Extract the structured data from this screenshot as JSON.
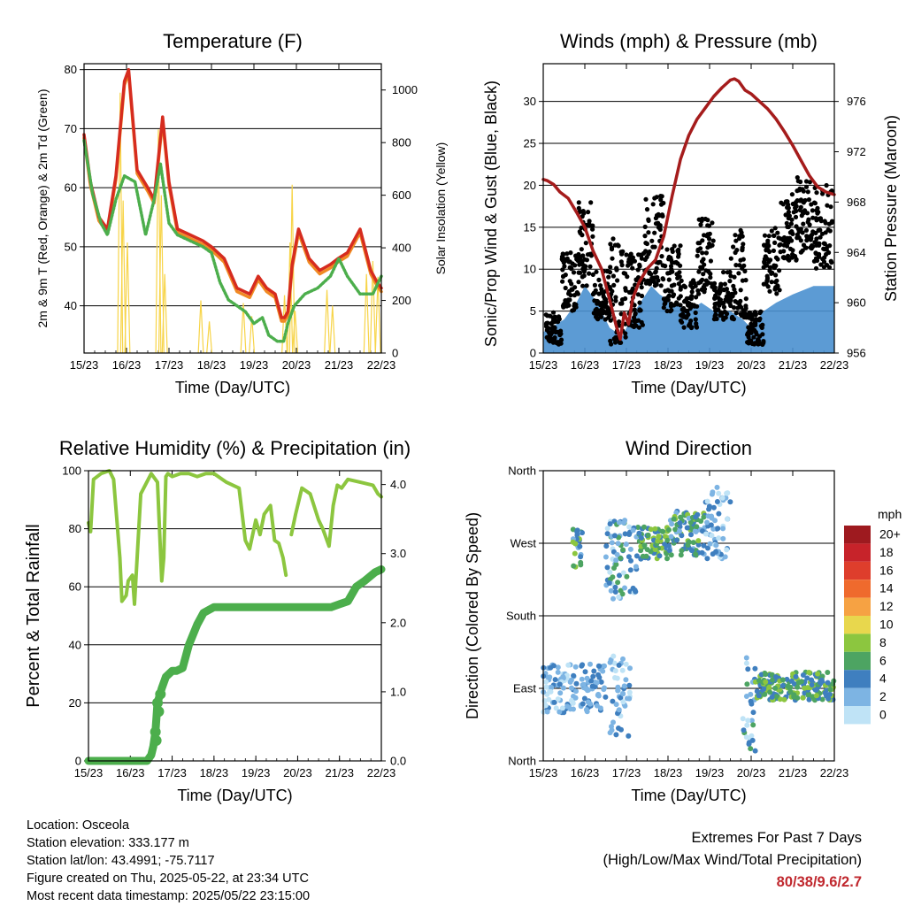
{
  "footer": {
    "location": "Location: Osceola",
    "elevation": "Station elevation: 333.177 m",
    "latlon": "Station lat/lon: 43.4991; -75.7117",
    "created": "Figure created on Thu, 2025-05-22, at 23:34 UTC",
    "latest": "Most recent data timestamp: 2025/05/22 23:15:00",
    "extremes_title": "Extremes For Past 7 Days",
    "extremes_sub": "(High/Low/Max Wind/Total Precipitation)",
    "extremes_value": "80/38/9.6/2.7"
  },
  "colors": {
    "temp_2m": "#d62c1f",
    "temp_9m": "#f08a24",
    "dewpoint": "#4cae4c",
    "solar": "#f7d448",
    "wind_speed": "#4a90cf",
    "wind_gust": "#000000",
    "pressure": "#a51c1c",
    "humidity": "#8cc63f",
    "precip": "#4cae4c"
  },
  "chart_data": [
    {
      "id": "temperature",
      "type": "line",
      "title": "Temperature (F)",
      "xlabel": "Time (Day/UTC)",
      "ylabel": "2m & 9m T (Red, Orange) & 2m Td (Green)",
      "ylabel_right": "Solar Insolation (Yellow)",
      "x_ticks": [
        "15/23",
        "16/23",
        "17/23",
        "18/23",
        "19/23",
        "20/23",
        "21/23",
        "22/23"
      ],
      "xlim": [
        0,
        7
      ],
      "ylim": [
        32,
        81
      ],
      "y_ticks": [
        40,
        50,
        60,
        70,
        80
      ],
      "ylim_right": [
        0,
        1100
      ],
      "y_ticks_right": [
        0,
        200,
        400,
        600,
        800,
        1000
      ],
      "grid": "horizontal",
      "series": [
        {
          "key": "temp",
          "x": [
            0,
            0.15,
            0.35,
            0.55,
            0.75,
            0.95,
            1.05,
            1.25,
            1.5,
            1.65,
            1.85,
            2.0,
            2.2,
            2.5,
            2.8,
            3.0,
            3.3,
            3.6,
            3.9,
            4.1,
            4.3,
            4.5,
            4.65,
            4.72,
            4.8,
            4.9,
            5.05,
            5.3,
            5.55,
            5.8,
            5.98,
            6.2,
            6.5,
            6.75,
            6.9,
            7.0
          ],
          "y": [
            69,
            61,
            55,
            53,
            62,
            78,
            80,
            63,
            60,
            58,
            72,
            61,
            53,
            52,
            51,
            50,
            48,
            43,
            42,
            45,
            43,
            42,
            38,
            38,
            39,
            47,
            53,
            48,
            46,
            47,
            48,
            49,
            53,
            46,
            44,
            43
          ]
        },
        {
          "key": "dew",
          "x": [
            0,
            0.2,
            0.4,
            0.55,
            0.75,
            0.95,
            1.2,
            1.45,
            1.65,
            1.8,
            2.0,
            2.2,
            2.5,
            2.8,
            3.0,
            3.2,
            3.4,
            3.6,
            3.8,
            4.0,
            4.2,
            4.35,
            4.55,
            4.7,
            4.8,
            4.95,
            5.2,
            5.5,
            5.8,
            6.0,
            6.2,
            6.5,
            6.8,
            7.0
          ],
          "y": [
            68,
            59,
            54,
            52,
            58,
            62,
            61,
            52,
            58,
            64,
            54,
            52,
            51,
            50,
            49,
            44,
            41,
            40,
            39,
            37,
            38,
            35,
            34,
            34,
            37,
            40,
            42,
            43,
            45,
            48,
            45,
            42,
            42,
            45
          ]
        }
      ],
      "solar_peaks": [
        {
          "x": 0.85,
          "v": 990
        },
        {
          "x": 0.92,
          "v": 580
        },
        {
          "x": 1.02,
          "v": 420
        },
        {
          "x": 1.75,
          "v": 850
        },
        {
          "x": 1.82,
          "v": 600
        },
        {
          "x": 1.9,
          "v": 300
        },
        {
          "x": 2.75,
          "v": 200
        },
        {
          "x": 2.95,
          "v": 120
        },
        {
          "x": 3.75,
          "v": 190
        },
        {
          "x": 3.95,
          "v": 140
        },
        {
          "x": 4.72,
          "v": 220
        },
        {
          "x": 4.85,
          "v": 420
        },
        {
          "x": 4.9,
          "v": 640
        },
        {
          "x": 4.97,
          "v": 160
        },
        {
          "x": 5.72,
          "v": 240
        },
        {
          "x": 5.85,
          "v": 180
        },
        {
          "x": 6.65,
          "v": 300
        },
        {
          "x": 6.8,
          "v": 350
        },
        {
          "x": 6.92,
          "v": 290
        }
      ]
    },
    {
      "id": "winds",
      "type": "scatter",
      "title": "Winds (mph) & Pressure (mb)",
      "xlabel": "Time (Day/UTC)",
      "ylabel": "Sonic/Prop Wind & Gust (Blue, Black)",
      "ylabel_right": "Station Pressure (Maroon)",
      "x_ticks": [
        "15/23",
        "16/23",
        "17/23",
        "18/23",
        "19/23",
        "20/23",
        "21/23",
        "22/23"
      ],
      "xlim": [
        0,
        7
      ],
      "ylim": [
        0,
        34.5
      ],
      "y_ticks": [
        0,
        5,
        10,
        15,
        20,
        25,
        30
      ],
      "ylim_right": [
        956,
        979
      ],
      "y_ticks_right": [
        956,
        960,
        964,
        968,
        972,
        976
      ],
      "grid": "horizontal",
      "pressure": {
        "x": [
          0,
          0.1,
          0.25,
          0.4,
          0.6,
          0.8,
          1.0,
          1.2,
          1.4,
          1.6,
          1.75,
          1.85,
          1.95,
          2.05,
          2.15,
          2.3,
          2.5,
          2.7,
          2.9,
          3.1,
          3.3,
          3.5,
          3.7,
          3.9,
          4.1,
          4.3,
          4.5,
          4.6,
          4.7,
          4.85,
          5.0,
          5.2,
          5.4,
          5.6,
          5.8,
          6.0,
          6.2,
          6.4,
          6.6,
          6.8,
          7.0
        ],
        "y": [
          969.8,
          969.7,
          969.4,
          968.8,
          968.3,
          967.2,
          966.0,
          964.1,
          962.7,
          960.2,
          958.2,
          957.1,
          959.2,
          958.3,
          960.3,
          961.6,
          962.7,
          963.4,
          965.3,
          968.5,
          971.4,
          973.3,
          974.6,
          975.5,
          976.4,
          977.1,
          977.7,
          977.8,
          977.6,
          976.9,
          976.6,
          976.0,
          975.4,
          974.6,
          973.6,
          972.5,
          971.3,
          970.1,
          969.2,
          968.8,
          968.6
        ]
      },
      "speed_envelope": [
        {
          "x": 0,
          "y": 2.5
        },
        {
          "x": 0.5,
          "y": 4
        },
        {
          "x": 0.8,
          "y": 6
        },
        {
          "x": 1.0,
          "y": 8
        },
        {
          "x": 1.3,
          "y": 6
        },
        {
          "x": 1.6,
          "y": 3
        },
        {
          "x": 1.9,
          "y": 2
        },
        {
          "x": 2.2,
          "y": 5
        },
        {
          "x": 2.6,
          "y": 8
        },
        {
          "x": 2.8,
          "y": 7
        },
        {
          "x": 3.1,
          "y": 6
        },
        {
          "x": 3.5,
          "y": 5
        },
        {
          "x": 3.8,
          "y": 6
        },
        {
          "x": 4.1,
          "y": 5
        },
        {
          "x": 4.5,
          "y": 5
        },
        {
          "x": 4.8,
          "y": 4
        },
        {
          "x": 5.0,
          "y": 3
        },
        {
          "x": 5.3,
          "y": 5
        },
        {
          "x": 5.6,
          "y": 6
        },
        {
          "x": 6.0,
          "y": 7
        },
        {
          "x": 6.5,
          "y": 8
        },
        {
          "x": 7.0,
          "y": 8
        }
      ],
      "gust_clusters": [
        {
          "x0": 0.05,
          "x1": 0.45,
          "lo": 1,
          "hi": 5
        },
        {
          "x0": 0.45,
          "x1": 0.85,
          "lo": 5,
          "hi": 12
        },
        {
          "x0": 0.85,
          "x1": 1.2,
          "lo": 8,
          "hi": 18
        },
        {
          "x0": 1.2,
          "x1": 1.6,
          "lo": 4,
          "hi": 10
        },
        {
          "x0": 1.6,
          "x1": 2.0,
          "lo": 1,
          "hi": 14
        },
        {
          "x0": 2.0,
          "x1": 2.4,
          "lo": 3,
          "hi": 12
        },
        {
          "x0": 2.4,
          "x1": 2.9,
          "lo": 8,
          "hi": 19
        },
        {
          "x0": 2.9,
          "x1": 3.3,
          "lo": 5,
          "hi": 13
        },
        {
          "x0": 3.3,
          "x1": 3.7,
          "lo": 3,
          "hi": 9
        },
        {
          "x0": 3.7,
          "x1": 4.1,
          "lo": 7,
          "hi": 16
        },
        {
          "x0": 4.1,
          "x1": 4.5,
          "lo": 4,
          "hi": 10
        },
        {
          "x0": 4.5,
          "x1": 4.9,
          "lo": 4,
          "hi": 15
        },
        {
          "x0": 4.9,
          "x1": 5.3,
          "lo": 1,
          "hi": 5
        },
        {
          "x0": 5.3,
          "x1": 5.7,
          "lo": 7,
          "hi": 15
        },
        {
          "x0": 5.7,
          "x1": 6.1,
          "lo": 11,
          "hi": 19
        },
        {
          "x0": 6.1,
          "x1": 6.5,
          "lo": 12,
          "hi": 21
        },
        {
          "x0": 6.5,
          "x1": 6.95,
          "lo": 10,
          "hi": 20
        }
      ]
    },
    {
      "id": "humidity",
      "type": "line",
      "title": "Relative Humidity (%) & Precipitation (in)",
      "xlabel": "Time (Day/UTC)",
      "ylabel": "Percent & Total Rainfall",
      "x_ticks": [
        "15/23",
        "16/23",
        "17/23",
        "18/23",
        "19/23",
        "20/23",
        "21/23",
        "22/23"
      ],
      "xlim": [
        0,
        7
      ],
      "ylim": [
        0,
        100
      ],
      "y_ticks": [
        0,
        20,
        40,
        60,
        80,
        100
      ],
      "ylim_right": [
        0,
        4.0
      ],
      "y_ticks_right": [
        "0.0",
        "1.0",
        "2.0",
        "3.0",
        "4.0"
      ],
      "grid": "horizontal",
      "rh": {
        "x": [
          0,
          0.05,
          0.12,
          0.3,
          0.5,
          0.6,
          0.75,
          0.8,
          0.9,
          0.95,
          1.05,
          1.1,
          1.25,
          1.5,
          1.65,
          1.75,
          1.8,
          1.85,
          1.9,
          2.0,
          2.2,
          2.4,
          2.6,
          2.8,
          3.0,
          3.3,
          3.6,
          3.75,
          3.85,
          4.0,
          4.1,
          4.2,
          4.35,
          4.45,
          4.55,
          4.65,
          4.72
        ],
        "y": [
          82,
          79,
          97,
          99,
          100,
          97,
          70,
          55,
          57,
          62,
          64,
          54,
          92,
          99,
          96,
          62,
          70,
          98,
          99,
          98,
          99,
          99,
          98,
          99,
          99,
          96,
          94,
          76,
          73,
          83,
          78,
          85,
          88,
          76,
          75,
          70,
          64
        ]
      },
      "rh2": {
        "x": [
          4.85,
          4.95,
          5.1,
          5.3,
          5.5,
          5.6,
          5.75,
          5.85,
          5.95,
          6.05,
          6.2,
          6.5,
          6.8,
          6.92,
          7.0
        ],
        "y": [
          78,
          85,
          94,
          92,
          83,
          80,
          74,
          88,
          95,
          94,
          97,
          96,
          95,
          92,
          91
        ]
      },
      "precip": {
        "x": [
          0,
          0.5,
          1.0,
          1.4,
          1.5,
          1.55,
          1.6,
          1.65,
          1.75,
          1.85,
          2.0,
          2.1,
          2.25,
          2.4,
          2.6,
          2.75,
          3.0,
          3.5,
          4.0,
          4.5,
          5.0,
          5.5,
          5.8,
          6.0,
          6.2,
          6.4,
          6.6,
          6.85,
          7.0
        ],
        "y": [
          0,
          0,
          0,
          0,
          2,
          5,
          10,
          20,
          25,
          29,
          31,
          31,
          32,
          40,
          47,
          51,
          53,
          53,
          53,
          53,
          53,
          53,
          53,
          54,
          55,
          60,
          62,
          65,
          66
        ]
      }
    },
    {
      "id": "direction",
      "type": "scatter",
      "title": "Wind Direction",
      "xlabel": "Time (Day/UTC)",
      "ylabel": "Direction (Colored By Speed)",
      "x_ticks": [
        "15/23",
        "16/23",
        "17/23",
        "18/23",
        "19/23",
        "20/23",
        "21/23",
        "22/23"
      ],
      "xlim": [
        0,
        7
      ],
      "y_ticks": [
        "North",
        "East",
        "South",
        "West",
        "North"
      ],
      "ylim": [
        0,
        360
      ],
      "grid": "horizontal",
      "colorbar": {
        "title": "mph",
        "labels": [
          "20+",
          "18",
          "16",
          "14",
          "12",
          "10",
          "8",
          "6",
          "4",
          "2",
          "0"
        ],
        "colors": [
          "#9e1a1f",
          "#c7232a",
          "#de3e2c",
          "#ef6a2d",
          "#f6a243",
          "#e8d74d",
          "#8cc63f",
          "#4da462",
          "#3f7fbf",
          "#7db4e3",
          "#bfe3f6"
        ]
      },
      "clusters": [
        {
          "x0": 0.0,
          "x1": 0.8,
          "d0": 60,
          "d1": 120,
          "s0": 0,
          "s1": 4
        },
        {
          "x0": 0.7,
          "x1": 0.95,
          "d0": 240,
          "d1": 290,
          "s0": 2,
          "s1": 8
        },
        {
          "x0": 0.9,
          "x1": 1.5,
          "d0": 60,
          "d1": 120,
          "s0": 1,
          "s1": 5
        },
        {
          "x0": 1.5,
          "x1": 2.3,
          "d0": 200,
          "d1": 300,
          "s0": 0,
          "s1": 6
        },
        {
          "x0": 1.6,
          "x1": 2.1,
          "d0": 30,
          "d1": 130,
          "s0": 0,
          "s1": 4
        },
        {
          "x0": 2.3,
          "x1": 3.0,
          "d0": 250,
          "d1": 290,
          "s0": 3,
          "s1": 9
        },
        {
          "x0": 3.0,
          "x1": 3.9,
          "d0": 255,
          "d1": 310,
          "s0": 2,
          "s1": 8
        },
        {
          "x0": 3.9,
          "x1": 4.5,
          "d0": 250,
          "d1": 340,
          "s0": 0,
          "s1": 5
        },
        {
          "x0": 4.8,
          "x1": 5.1,
          "d0": 10,
          "d1": 150,
          "s0": 0,
          "s1": 6
        },
        {
          "x0": 5.1,
          "x1": 7.0,
          "d0": 75,
          "d1": 110,
          "s0": 3,
          "s1": 9
        }
      ]
    }
  ]
}
